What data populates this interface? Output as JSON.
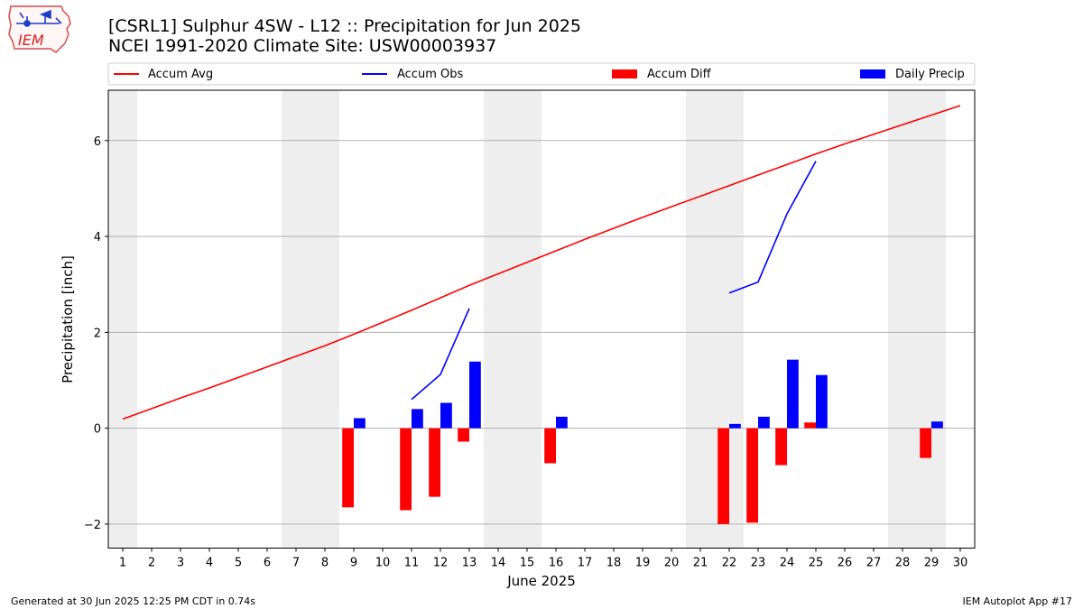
{
  "logo": {
    "text": "IEM",
    "colors": {
      "state_outline": "#d94a4a",
      "glyph": "#1a3cc8"
    }
  },
  "title_line1": "[CSRL1] Sulphur 4SW - L12 :: Precipitation for Jun 2025",
  "title_line2": "NCEI 1991-2020 Climate Site: USW00003937",
  "footer": {
    "left": "Generated at 30 Jun 2025 12:25 PM CDT in 0.74s",
    "right": "IEM Autoplot App #17"
  },
  "chart_data": {
    "type": "bar",
    "xlabel": "June 2025",
    "ylabel": "Precipitation [inch]",
    "xlim": [
      0.5,
      30.5
    ],
    "ylim": [
      -2.5,
      7.05
    ],
    "yticks": [
      -2,
      0,
      2,
      4,
      6
    ],
    "ytick_labels": [
      "−2",
      "0",
      "2",
      "4",
      "6"
    ],
    "x": [
      1,
      2,
      3,
      4,
      5,
      6,
      7,
      8,
      9,
      10,
      11,
      12,
      13,
      14,
      15,
      16,
      17,
      18,
      19,
      20,
      21,
      22,
      23,
      24,
      25,
      26,
      27,
      28,
      29,
      30
    ],
    "weekend_days": [
      1,
      7,
      8,
      14,
      15,
      21,
      22,
      28,
      29
    ],
    "grid": "horizontal",
    "legend_placement": "top, above plot",
    "legend": [
      {
        "label": "Accum Avg",
        "kind": "line",
        "color": "#ff0000"
      },
      {
        "label": "Accum Obs",
        "kind": "line",
        "color": "#0000ff"
      },
      {
        "label": "Accum Diff",
        "kind": "bar",
        "color": "#ff0000"
      },
      {
        "label": "Daily Precip",
        "kind": "bar",
        "color": "#0000ff"
      }
    ],
    "series": [
      {
        "name": "Accum Avg",
        "type": "line",
        "color": "#ff0000",
        "values": [
          0.19,
          0.41,
          0.63,
          0.84,
          1.06,
          1.28,
          1.5,
          1.72,
          1.96,
          2.21,
          2.46,
          2.72,
          2.98,
          3.22,
          3.46,
          3.7,
          3.94,
          4.17,
          4.4,
          4.62,
          4.84,
          5.06,
          5.28,
          5.5,
          5.72,
          5.93,
          6.13,
          6.33,
          6.53,
          6.73
        ]
      },
      {
        "name": "Accum Obs",
        "type": "line",
        "color": "#0000ff",
        "values": [
          null,
          null,
          null,
          null,
          null,
          null,
          null,
          null,
          null,
          null,
          0.6,
          1.12,
          2.5,
          null,
          null,
          null,
          null,
          null,
          null,
          null,
          null,
          2.82,
          3.05,
          4.47,
          5.57,
          null,
          null,
          null,
          null,
          null
        ]
      },
      {
        "name": "Accum Diff",
        "type": "bar",
        "color": "#ff0000",
        "values": [
          null,
          null,
          null,
          null,
          null,
          null,
          null,
          null,
          -1.65,
          null,
          -1.71,
          -1.43,
          -0.28,
          null,
          null,
          -0.73,
          null,
          null,
          null,
          null,
          null,
          -2.0,
          -1.97,
          -0.77,
          0.12,
          null,
          null,
          null,
          -0.62,
          null
        ]
      },
      {
        "name": "Daily Precip",
        "type": "bar",
        "color": "#0000ff",
        "values": [
          null,
          null,
          null,
          null,
          null,
          null,
          null,
          null,
          0.21,
          null,
          0.4,
          0.53,
          1.39,
          null,
          null,
          0.24,
          null,
          null,
          null,
          null,
          null,
          0.09,
          0.24,
          1.43,
          1.11,
          null,
          null,
          null,
          0.14,
          null
        ]
      }
    ]
  }
}
